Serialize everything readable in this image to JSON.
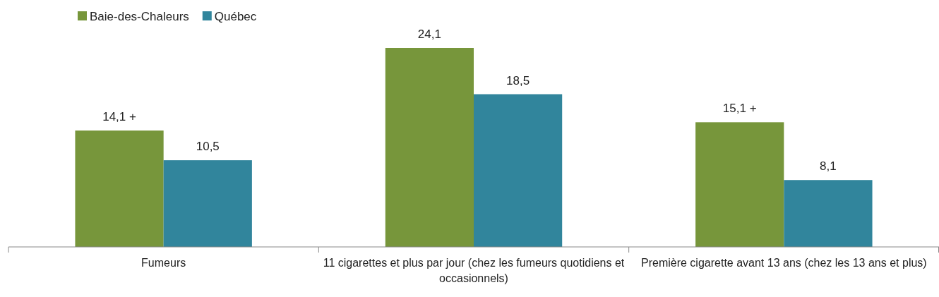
{
  "chart_data": {
    "type": "bar",
    "categories": [
      "Fumeurs",
      "11 cigarettes et plus par jour (chez les fumeurs quotidiens et occasionnels)",
      "Première cigarette avant 13 ans (chez les 13 ans et plus)"
    ],
    "series": [
      {
        "name": "Baie-des-Chaleurs",
        "color": "#77963b",
        "values": [
          14.1,
          24.1,
          15.1
        ],
        "value_labels": [
          "14,1 +",
          "24,1",
          "15,1 +"
        ]
      },
      {
        "name": "Québec",
        "color": "#31859c",
        "values": [
          10.5,
          18.5,
          8.1
        ],
        "value_labels": [
          "10,5",
          "18,5",
          "8,1"
        ]
      }
    ],
    "legend": "top left"
  }
}
